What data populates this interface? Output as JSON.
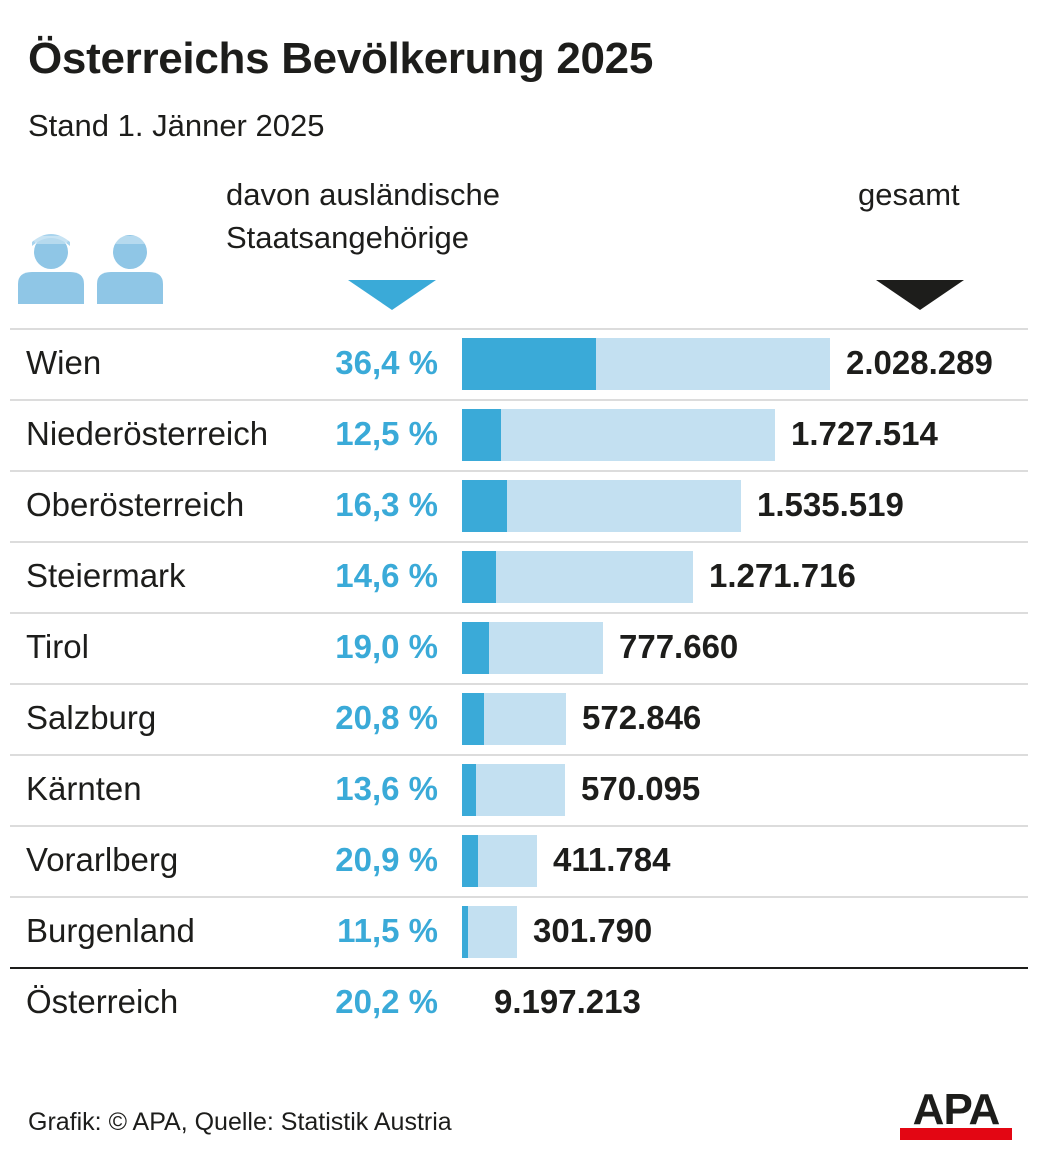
{
  "title": "Österreichs Bevölkerung 2025",
  "subtitle": "Stand 1. Jänner 2025",
  "header": {
    "foreign_line1": "davon ausländische",
    "foreign_line2": "Staatsangehörige",
    "total": "gesamt"
  },
  "colors": {
    "foreign": "#3aaad8",
    "total": "#c3e0f1",
    "text": "#1d1d1b",
    "logo_red": "#e30613"
  },
  "icons": {
    "people": "people-icon",
    "arrow_foreign": "triangle-down-blue-icon",
    "arrow_total": "triangle-down-black-icon"
  },
  "chart_data": {
    "type": "bar",
    "orientation": "horizontal",
    "stacked_overlay": true,
    "title": "Österreichs Bevölkerung 2025",
    "subtitle": "Stand 1. Jänner 2025",
    "categories": [
      "Wien",
      "Niederösterreich",
      "Oberösterreich",
      "Steiermark",
      "Tirol",
      "Salzburg",
      "Kärnten",
      "Vorarlberg",
      "Burgenland"
    ],
    "series": [
      {
        "name": "gesamt",
        "values": [
          2028289,
          1727514,
          1535519,
          1271716,
          777660,
          572846,
          570095,
          411784,
          301790
        ],
        "labels": [
          "2.028.289",
          "1.727.514",
          "1.535.519",
          "1.271.716",
          "777.660",
          "572.846",
          "570.095",
          "411.784",
          "301.790"
        ]
      },
      {
        "name": "davon ausländische Staatsangehörige (Anteil %)",
        "values": [
          36.4,
          12.5,
          16.3,
          14.6,
          19.0,
          20.8,
          13.6,
          20.9,
          11.5
        ],
        "labels": [
          "36,4 %",
          "12,5 %",
          "16,3 %",
          "14,6 %",
          "19,0 %",
          "20,8 %",
          "13,6 %",
          "20,9 %",
          "11,5 %"
        ]
      }
    ],
    "total": {
      "name": "Österreich",
      "share": 20.2,
      "share_label": "20,2 %",
      "value": 9197213,
      "value_label": "9.197.213"
    },
    "xlim": [
      0,
      2028289
    ]
  },
  "footer": {
    "source": "Grafik: © APA, Quelle: Statistik Austria",
    "logo": "APA"
  }
}
